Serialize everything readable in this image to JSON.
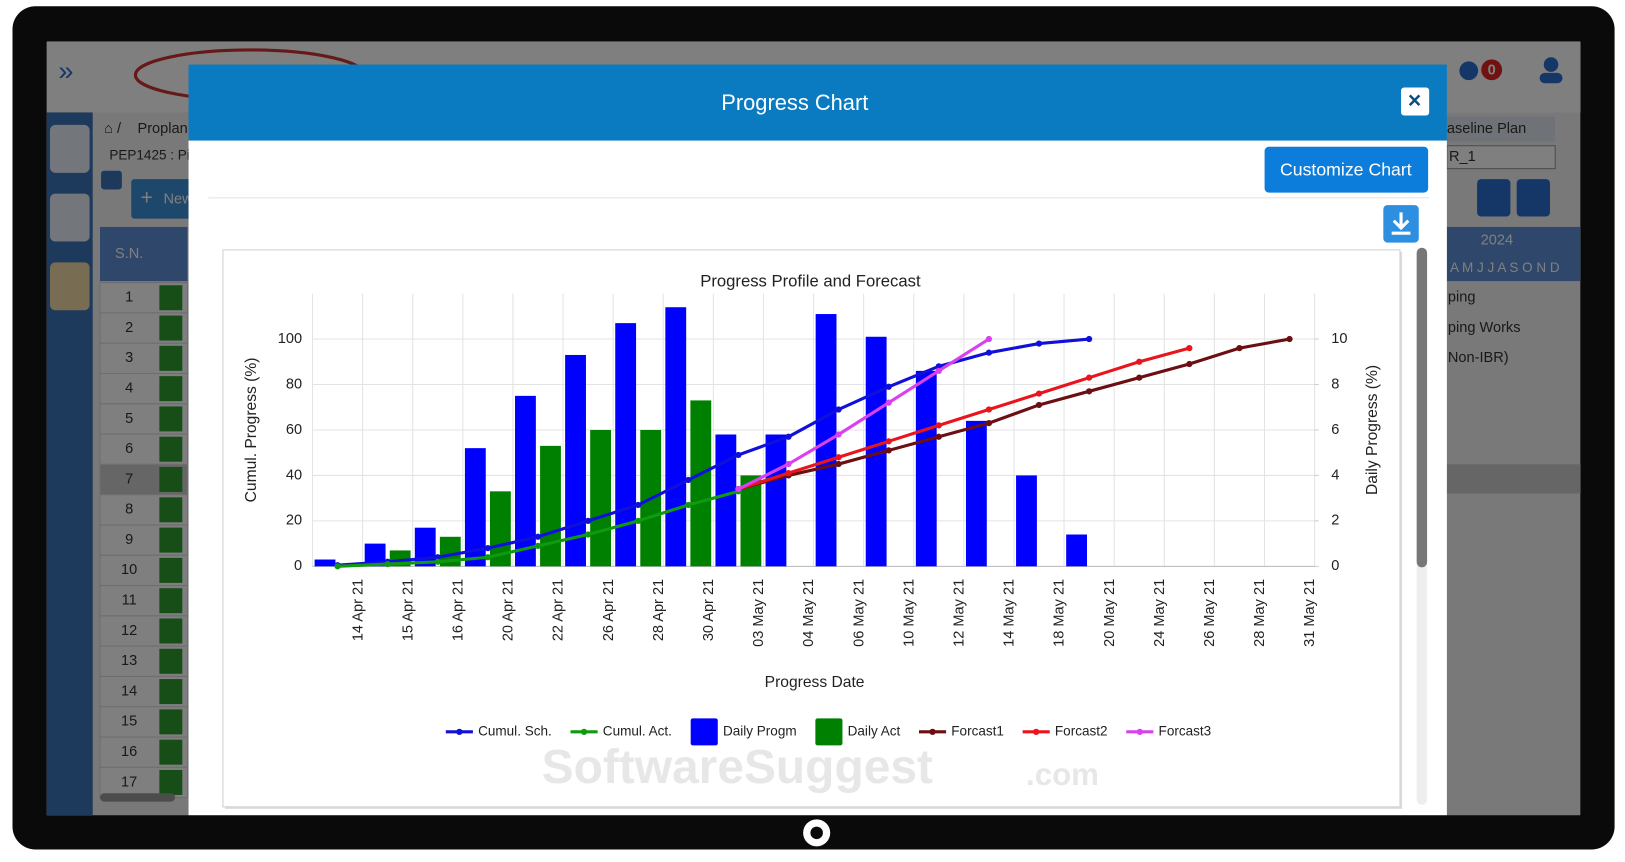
{
  "app": {
    "breadcrumb": "Proplan",
    "project": "PEP1425 : Pi",
    "new_button": "New",
    "notification_count": 0,
    "table": {
      "header": "S.N.",
      "row_numbers": [
        1,
        2,
        3,
        4,
        5,
        6,
        7,
        8,
        9,
        10,
        11,
        12,
        13,
        14,
        15,
        16,
        17
      ]
    },
    "right_panel": {
      "plan_label": "aseline Plan",
      "plan_select": "R_1",
      "year": 2024,
      "months": "A M J J A S O N D",
      "tasks": [
        "ping",
        "ping Works",
        "Non-IBR)"
      ]
    },
    "watermark": {
      "name": "SoftwareSuggest",
      "suffix": ".com"
    }
  },
  "modal": {
    "title": "Progress Chart",
    "close": "×",
    "customize_button": "Customize Chart"
  },
  "chart_data": {
    "type": "combo",
    "title": "Progress Profile and Forecast",
    "x_label": "Progress Date",
    "y_label": "Cumul. Progress (%)",
    "y2_label": "Daily Progress (%)",
    "categories": [
      "14 Apr 21",
      "15 Apr 21",
      "16 Apr 21",
      "20 Apr 21",
      "22 Apr 21",
      "26 Apr 21",
      "28 Apr 21",
      "30 Apr 21",
      "03 May 21",
      "04 May 21",
      "06 May 21",
      "10 May 21",
      "12 May 21",
      "14 May 21",
      "18 May 21",
      "20 May 21",
      "24 May 21",
      "26 May 21",
      "28 May 21",
      "31 May 21"
    ],
    "ylim": [
      0,
      120
    ],
    "yticks": [
      0,
      20,
      40,
      60,
      80,
      100
    ],
    "y2lim": [
      0,
      12
    ],
    "y2ticks": [
      0,
      2,
      4,
      6,
      8,
      10
    ],
    "grid": true,
    "legend": "bottom",
    "series": [
      {
        "name": "Cumul. Sch.",
        "type": "line",
        "color": "#1010d8",
        "values": [
          0.5,
          2,
          4,
          8,
          13,
          20,
          27,
          38,
          49,
          57,
          69,
          79,
          88,
          94,
          98,
          100,
          null,
          null,
          null,
          null
        ]
      },
      {
        "name": "Cumul. Act.",
        "type": "line",
        "color": "#109a10",
        "values": [
          0,
          1,
          2,
          4,
          9,
          14,
          20,
          27,
          33,
          null,
          null,
          null,
          null,
          null,
          null,
          null,
          null,
          null,
          null,
          null
        ]
      },
      {
        "name": "Daily Progm",
        "type": "bar",
        "axis": "y2",
        "color": "#0000ff",
        "values": [
          0.3,
          1.0,
          1.7,
          5.2,
          7.5,
          9.3,
          10.7,
          11.4,
          5.8,
          5.8,
          11.1,
          10.1,
          8.6,
          6.4,
          4.0,
          1.4,
          null,
          null,
          null,
          null
        ]
      },
      {
        "name": "Daily Act",
        "type": "bar",
        "axis": "y2",
        "color": "#008000",
        "values": [
          null,
          0.7,
          1.3,
          3.3,
          5.3,
          6.0,
          6.0,
          7.3,
          4.0,
          null,
          null,
          null,
          null,
          null,
          null,
          null,
          null,
          null,
          null,
          null
        ]
      },
      {
        "name": "Forcast1",
        "type": "line",
        "color": "#6b0f12",
        "values": [
          null,
          null,
          null,
          null,
          null,
          null,
          null,
          null,
          34,
          40,
          45,
          51,
          57,
          63,
          71,
          77,
          83,
          89,
          96,
          100
        ]
      },
      {
        "name": "Forcast2",
        "type": "line",
        "color": "#e8161c",
        "values": [
          null,
          null,
          null,
          null,
          null,
          null,
          null,
          null,
          34,
          41,
          48,
          55,
          62,
          69,
          76,
          83,
          90,
          96,
          null,
          null
        ]
      },
      {
        "name": "Forcast3",
        "type": "line",
        "color": "#d940f0",
        "values": [
          null,
          null,
          null,
          null,
          null,
          null,
          null,
          null,
          34,
          45,
          58,
          72,
          86,
          100,
          null,
          null,
          null,
          null,
          null,
          null
        ]
      }
    ]
  }
}
